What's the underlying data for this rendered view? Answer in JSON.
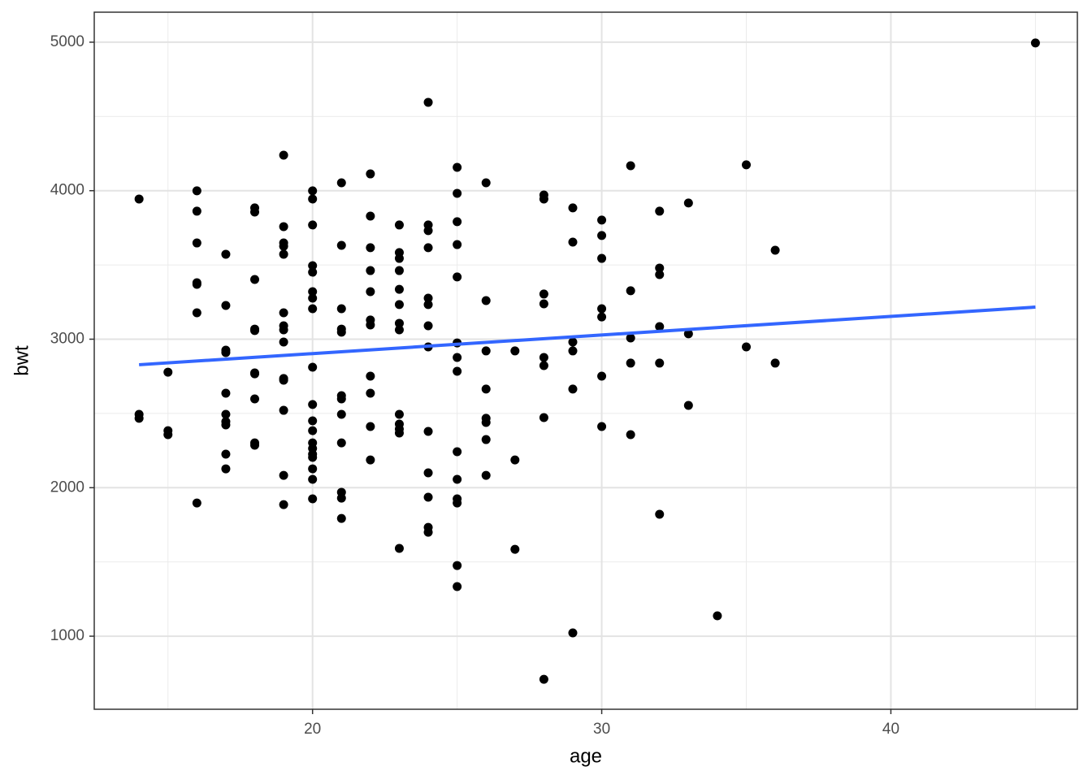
{
  "chart_data": {
    "type": "scatter",
    "x_label": "age",
    "y_label": "bwt",
    "color": "#000000",
    "x": [
      14,
      14,
      14,
      15,
      15,
      15,
      16,
      16,
      16,
      16,
      16,
      16,
      16,
      17,
      17,
      17,
      17,
      17,
      17,
      17,
      17,
      17,
      17,
      18,
      18,
      18,
      18,
      18,
      18,
      18,
      18,
      18,
      18,
      19,
      19,
      19,
      19,
      19,
      19,
      19,
      19,
      19,
      19,
      19,
      19,
      19,
      19,
      20,
      20,
      20,
      20,
      20,
      20,
      20,
      20,
      20,
      20,
      20,
      20,
      20,
      20,
      20,
      20,
      20,
      20,
      20,
      21,
      21,
      21,
      21,
      21,
      21,
      21,
      21,
      21,
      21,
      21,
      21,
      22,
      22,
      22,
      22,
      22,
      22,
      22,
      22,
      22,
      22,
      22,
      23,
      23,
      23,
      23,
      23,
      23,
      23,
      23,
      23,
      23,
      23,
      23,
      23,
      24,
      24,
      24,
      24,
      24,
      24,
      24,
      24,
      24,
      24,
      24,
      24,
      24,
      25,
      25,
      25,
      25,
      25,
      25,
      25,
      25,
      25,
      25,
      25,
      25,
      25,
      25,
      26,
      26,
      26,
      26,
      26,
      26,
      26,
      26,
      27,
      27,
      27,
      28,
      28,
      28,
      28,
      28,
      28,
      28,
      28,
      29,
      29,
      29,
      29,
      29,
      29,
      30,
      30,
      30,
      30,
      30,
      30,
      30,
      31,
      31,
      31,
      31,
      31,
      32,
      32,
      32,
      32,
      32,
      32,
      33,
      33,
      33,
      34,
      35,
      35,
      36,
      36,
      45
    ],
    "values": [
      3944,
      2494,
      2467,
      2778,
      2384,
      2357,
      3999,
      3862,
      3648,
      3380,
      3369,
      3178,
      1897,
      3572,
      3227,
      2926,
      2910,
      2636,
      2494,
      2445,
      2423,
      2226,
      2127,
      3884,
      3856,
      3402,
      3068,
      3058,
      2773,
      2767,
      2598,
      2302,
      2286,
      4239,
      3758,
      3648,
      3626,
      3572,
      3178,
      3090,
      3063,
      2981,
      2735,
      2724,
      2521,
      2083,
      1886,
      3999,
      3944,
      3769,
      3495,
      3451,
      3320,
      3276,
      3205,
      2811,
      2560,
      2450,
      2384,
      2302,
      2264,
      2226,
      2204,
      2127,
      2056,
      1925,
      4053,
      3632,
      3205,
      3068,
      3047,
      2620,
      2598,
      2494,
      2302,
      1969,
      1930,
      1793,
      4113,
      3829,
      3616,
      3462,
      3320,
      3129,
      3096,
      2751,
      2636,
      2412,
      2187,
      3769,
      3583,
      3544,
      3462,
      3336,
      3233,
      3107,
      3063,
      2494,
      2428,
      2395,
      2368,
      1591,
      4595,
      3769,
      3731,
      3616,
      3276,
      3233,
      3090,
      2948,
      2379,
      2100,
      1936,
      1733,
      1700,
      4157,
      3982,
      3791,
      3637,
      3419,
      2975,
      2877,
      2784,
      2242,
      2056,
      1925,
      1897,
      1476,
      1334,
      4053,
      3260,
      2921,
      2664,
      2467,
      2439,
      2324,
      2083,
      2921,
      2187,
      1585,
      3971,
      3944,
      3304,
      3238,
      2877,
      2822,
      2472,
      710,
      3884,
      3654,
      2981,
      2921,
      2664,
      1022,
      3802,
      3698,
      3544,
      3205,
      3150,
      2751,
      2412,
      4168,
      3326,
      3008,
      2839,
      2357,
      3862,
      3479,
      3435,
      3085,
      2839,
      1821,
      3917,
      3036,
      2554,
      1137,
      4174,
      2948,
      3599,
      2839,
      4995
    ],
    "fit_line": {
      "color": "#3366FF",
      "x": [
        14,
        45
      ],
      "values": [
        2828,
        3216
      ]
    },
    "xlim": [
      12.45,
      46.45
    ],
    "ylim": [
      508,
      5202
    ],
    "xticks": [
      20,
      30,
      40
    ],
    "yticks": [
      1000,
      2000,
      3000,
      4000,
      5000
    ],
    "minor_xticks": [
      15,
      25,
      35,
      45
    ],
    "minor_yticks": [
      1500,
      2500,
      3500,
      4500
    ],
    "grid": true
  }
}
